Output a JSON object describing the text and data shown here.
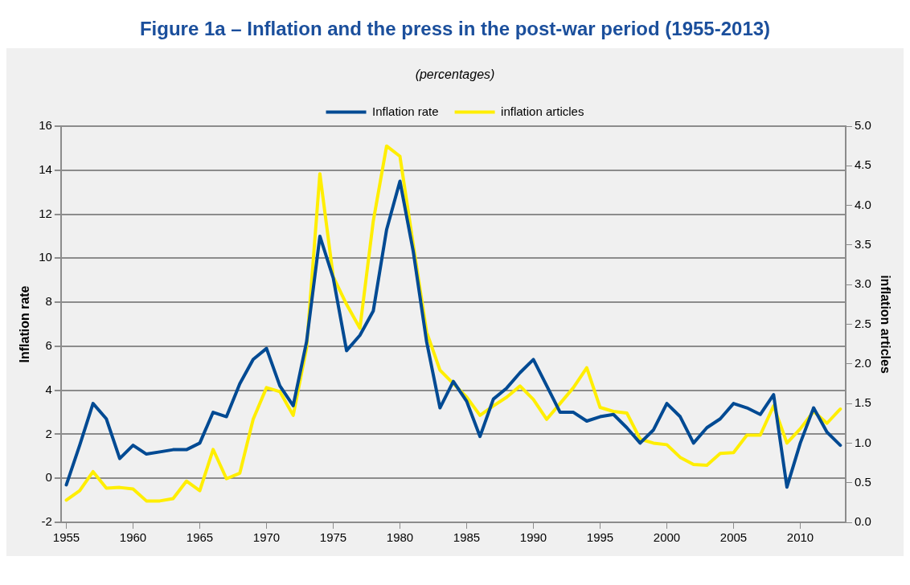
{
  "chart_data": {
    "type": "line",
    "title": "Figure 1a – Inflation and the press in the post-war period (1955-2013)",
    "subtitle": "(percentages)",
    "ylabel": "Inflation rate",
    "y2label": "inflation articles",
    "x": [
      1955,
      1956,
      1957,
      1958,
      1959,
      1960,
      1961,
      1962,
      1963,
      1964,
      1965,
      1966,
      1967,
      1968,
      1969,
      1970,
      1971,
      1972,
      1973,
      1974,
      1975,
      1976,
      1977,
      1978,
      1979,
      1980,
      1981,
      1982,
      1983,
      1984,
      1985,
      1986,
      1987,
      1988,
      1989,
      1990,
      1991,
      1992,
      1993,
      1994,
      1995,
      1996,
      1997,
      1998,
      1999,
      2000,
      2001,
      2002,
      2003,
      2004,
      2005,
      2006,
      2007,
      2008,
      2009,
      2010,
      2011,
      2012,
      2013
    ],
    "series": [
      {
        "name": "Inflation rate",
        "color": "#004a93",
        "values": [
          -0.3,
          1.5,
          3.4,
          2.7,
          0.9,
          1.5,
          1.1,
          1.2,
          1.3,
          1.3,
          1.6,
          3.0,
          2.8,
          4.3,
          5.4,
          5.9,
          4.2,
          3.3,
          6.2,
          11.0,
          9.1,
          5.8,
          6.5,
          7.6,
          11.3,
          13.5,
          10.3,
          6.2,
          3.2,
          4.4,
          3.5,
          1.9,
          3.6,
          4.1,
          4.8,
          5.4,
          4.2,
          3.0,
          3.0,
          2.6,
          2.8,
          2.9,
          2.3,
          1.6,
          2.2,
          3.4,
          2.8,
          1.6,
          2.3,
          2.7,
          3.4,
          3.2,
          2.9,
          3.8,
          -0.4,
          1.6,
          3.2,
          2.1,
          1.5
        ]
      },
      {
        "name": "inflation articles",
        "color": "#ffee00",
        "axis": "y2",
        "values": [
          0.28,
          0.4,
          0.64,
          0.43,
          0.44,
          0.42,
          0.27,
          0.27,
          0.3,
          0.52,
          0.4,
          0.92,
          0.55,
          0.62,
          1.3,
          1.7,
          1.65,
          1.35,
          2.2,
          4.4,
          3.1,
          2.75,
          2.45,
          3.8,
          4.75,
          4.62,
          3.5,
          2.4,
          1.92,
          1.75,
          1.58,
          1.35,
          1.47,
          1.58,
          1.72,
          1.55,
          1.3,
          1.5,
          1.7,
          1.95,
          1.45,
          1.4,
          1.38,
          1.05,
          1.0,
          0.98,
          0.82,
          0.73,
          0.72,
          0.87,
          0.88,
          1.1,
          1.1,
          1.47,
          1.0,
          1.18,
          1.4,
          1.25,
          1.43
        ]
      }
    ],
    "xlim": [
      1954.6,
      2013.4
    ],
    "xticks": [
      1955,
      1960,
      1965,
      1970,
      1975,
      1980,
      1985,
      1990,
      1995,
      2000,
      2005,
      2010
    ],
    "ylim": [
      -2,
      16
    ],
    "yticks": [
      -2,
      0,
      2,
      4,
      6,
      8,
      10,
      12,
      14,
      16
    ],
    "y2lim": [
      0,
      5
    ],
    "y2ticks": [
      {
        "value": 0,
        "label": "0.0"
      },
      {
        "value": 0.5,
        "label": "0.5"
      },
      {
        "value": 1,
        "label": "1.0"
      },
      {
        "value": 1.5,
        "label": "1.5"
      },
      {
        "value": 2,
        "label": "2.0"
      },
      {
        "value": 2.5,
        "label": "2.5"
      },
      {
        "value": 3,
        "label": "3.0"
      },
      {
        "value": 3.5,
        "label": "3.5"
      },
      {
        "value": 4,
        "label": "4.0"
      },
      {
        "value": 4.5,
        "label": "4.5"
      },
      {
        "value": 5,
        "label": "5.0"
      }
    ],
    "grid": "y",
    "legend": "top",
    "marker": "none",
    "line_style": "solid"
  }
}
